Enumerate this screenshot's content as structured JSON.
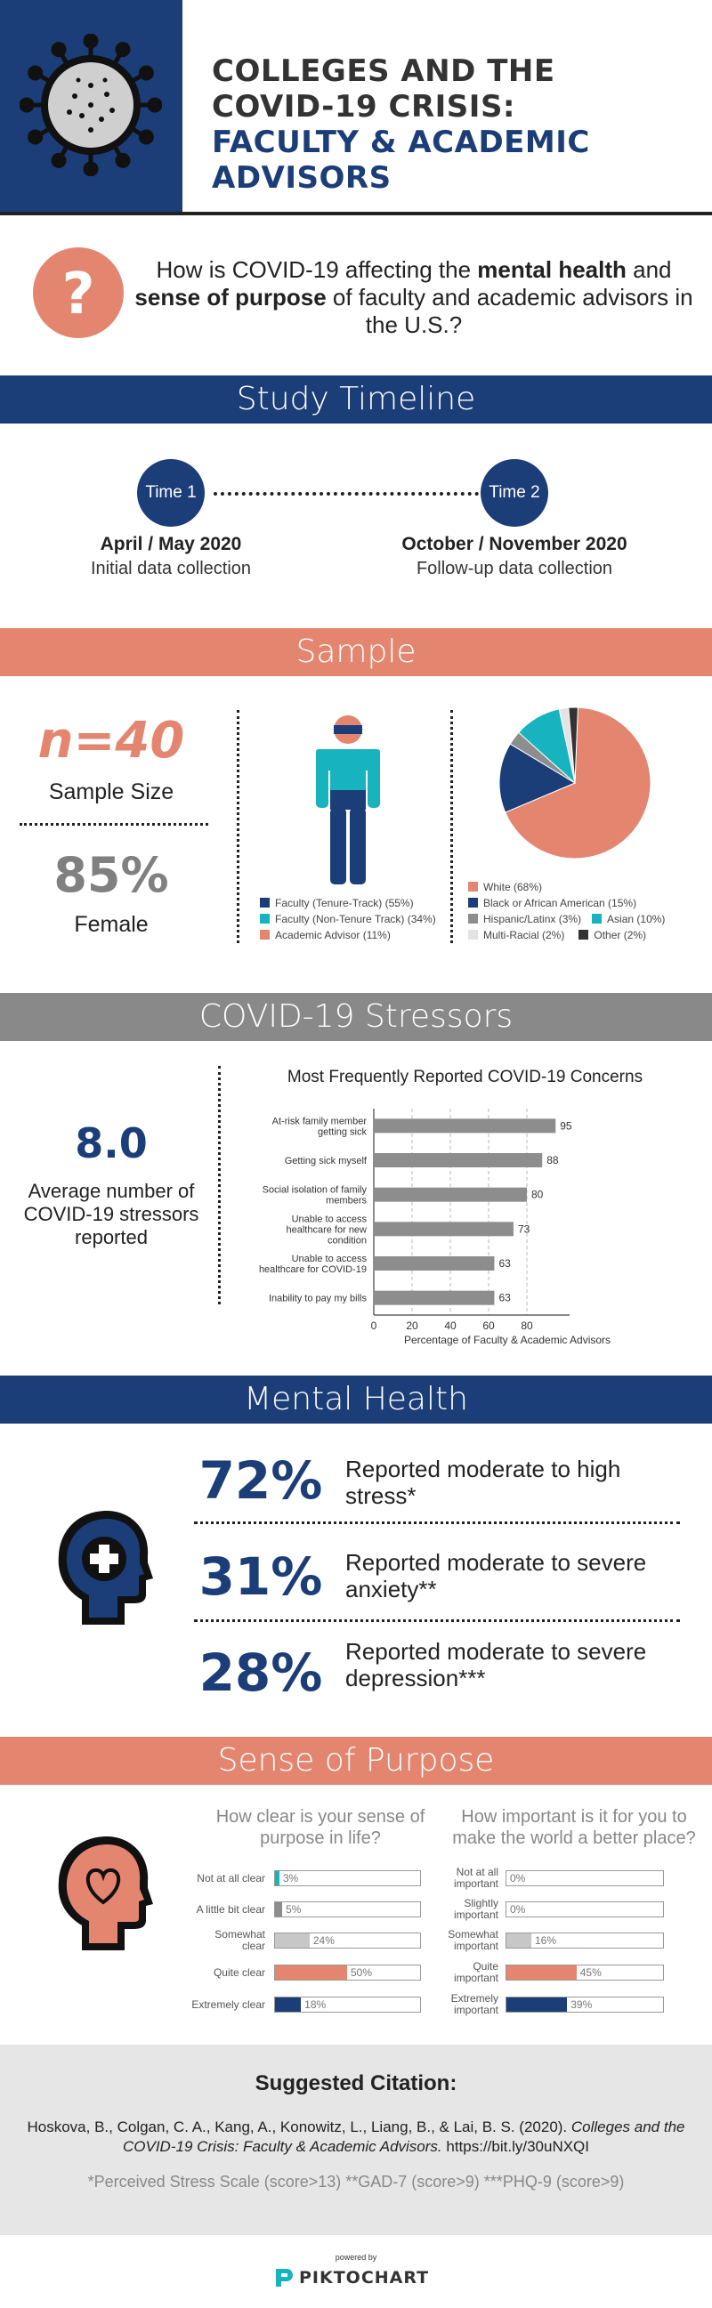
{
  "header": {
    "title_lines": [
      "COLLEGES AND THE",
      "COVID-19 CRISIS:",
      "FACULTY & ACADEMIC",
      "ADVISORS"
    ],
    "virus_icon": "virus-icon"
  },
  "question": {
    "icon": "question-icon",
    "text_parts": [
      "How is COVID-19 affecting the ",
      "mental health",
      " and ",
      "sense of purpose",
      " of faculty and academic advisors in the U.S.?"
    ]
  },
  "timeline": {
    "heading": "Study Timeline",
    "time1": {
      "badge": "Time 1",
      "date": "April / May 2020",
      "desc": "Initial data collection"
    },
    "time2": {
      "badge": "Time 2",
      "date": "October / November 2020",
      "desc": "Follow-up data collection"
    }
  },
  "sample": {
    "heading": "Sample",
    "n_value": "n=40",
    "n_label": "Sample Size",
    "female_value": "85%",
    "female_label": "Female",
    "person_icon": "person-icon",
    "role_legend": [
      {
        "label": "Faculty (Tenure-Track) (55%)",
        "color": "#1b3d78",
        "pct": 55
      },
      {
        "label": "Faculty (Non-Tenure Track) (34%)",
        "color": "#17b3bf",
        "pct": 34
      },
      {
        "label": "Academic Advisor (11%)",
        "color": "#e4866f",
        "pct": 11
      }
    ],
    "race_legend": [
      {
        "label": "White (68%)",
        "color": "#e4866f",
        "pct": 68
      },
      {
        "label": "Black or African American (15%)",
        "color": "#1b3d78",
        "pct": 15
      },
      {
        "label": "Hispanic/Latinx (3%)",
        "color": "#8d8d8d",
        "pct": 3
      },
      {
        "label": "Asian (10%)",
        "color": "#17b3bf",
        "pct": 10
      },
      {
        "label": "Multi-Racial (2%)",
        "color": "#e3e3e3",
        "pct": 2
      },
      {
        "label": "Other (2%)",
        "color": "#333333",
        "pct": 2
      }
    ]
  },
  "stressors": {
    "heading": "COVID-19 Stressors",
    "avg_value": "8.0",
    "avg_label": "Average number of COVID-19 stressors reported"
  },
  "chart_data": {
    "type": "bar",
    "orientation": "horizontal",
    "title": "Most Frequently Reported COVID-19 Concerns",
    "xlabel": "Percentage of Faculty & Academic Advisors",
    "ylabel": "",
    "xlim": [
      0,
      100
    ],
    "x_ticks": [
      "0",
      "20",
      "40",
      "60",
      "80"
    ],
    "grid": true,
    "categories": [
      "At-risk family member getting sick",
      "Getting sick myself",
      "Social isolation of family members",
      "Unable to access healthcare for new condition",
      "Unable to access healthcare for COVID-19",
      "Inability to pay my bills"
    ],
    "values": [
      95,
      88,
      80,
      73,
      63,
      63
    ],
    "bar_color": "#8d8d8d"
  },
  "mental_health": {
    "heading": "Mental Health",
    "head_icon": "head-medical-icon",
    "stats": [
      {
        "value": "72%",
        "text": "Reported moderate to high stress*"
      },
      {
        "value": "31%",
        "text": "Reported moderate to severe anxiety**"
      },
      {
        "value": "28%",
        "text": "Reported moderate to severe depression***"
      }
    ]
  },
  "purpose": {
    "heading": "Sense of Purpose",
    "head_icon": "head-heart-icon",
    "left": {
      "question": "How clear is your sense of purpose in life?",
      "items": [
        {
          "label": "Not at all clear",
          "pct": 3,
          "text": "3%",
          "color": "#17b3bf"
        },
        {
          "label": "A little bit clear",
          "pct": 5,
          "text": "5%",
          "color": "#8d8d8d"
        },
        {
          "label": "Somewhat clear",
          "pct": 24,
          "text": "24%",
          "color": "#c7c7c7"
        },
        {
          "label": "Quite clear",
          "pct": 50,
          "text": "50%",
          "color": "#e4866f"
        },
        {
          "label": "Extremely clear",
          "pct": 18,
          "text": "18%",
          "color": "#1b3d78"
        }
      ]
    },
    "right": {
      "question": "How important is it for you to make the world a better place?",
      "items": [
        {
          "label": "Not at all important",
          "pct": 0,
          "text": "0%",
          "color": "#17b3bf"
        },
        {
          "label": "Slightly important",
          "pct": 0,
          "text": "0%",
          "color": "#8d8d8d"
        },
        {
          "label": "Somewhat important",
          "pct": 16,
          "text": "16%",
          "color": "#c7c7c7"
        },
        {
          "label": "Quite important",
          "pct": 45,
          "text": "45%",
          "color": "#e4866f"
        },
        {
          "label": "Extremely important",
          "pct": 39,
          "text": "39%",
          "color": "#1b3d78"
        }
      ]
    }
  },
  "citation": {
    "heading": "Suggested Citation:",
    "authors": "Hoskova, B., Colgan, C. A., Kang, A., Konowitz, L., Liang, B., & Lai, B. S. (2020). ",
    "title": "Colleges and the COVID-19 Crisis: Faculty & Academic Advisors.",
    "link": " https://bit.ly/30uNXQI",
    "footnotes": "*Perceived Stress Scale (score>13) **GAD-7 (score>9) ***PHQ-9 (score>9)"
  },
  "footer": {
    "powered_by": "powered by",
    "brand": "PIKTOCHART",
    "logo_icon": "piktochart-logo-icon"
  }
}
